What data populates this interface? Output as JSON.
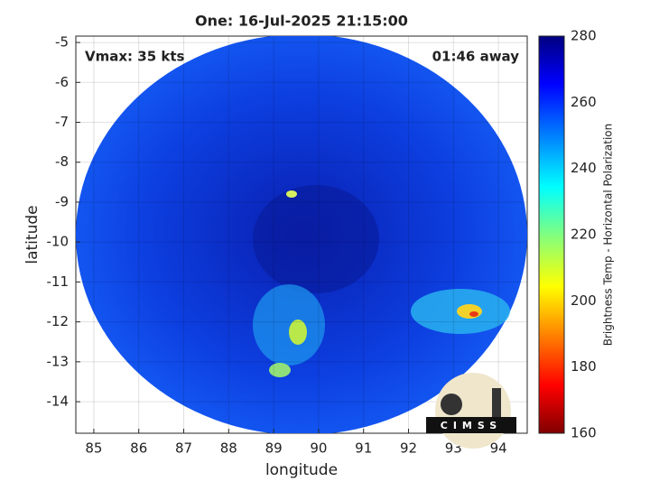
{
  "chart_data": {
    "type": "image",
    "title": "One: 16-Jul-2025 21:15:00",
    "annotations": [
      "Vmax: 35 kts",
      "01:46 away"
    ],
    "x_label": "longitude",
    "y_label": "latitude",
    "xlim": [
      84.6,
      94.64
    ],
    "xticks": [
      85,
      86,
      87,
      88,
      89,
      90,
      91,
      92,
      93,
      94
    ],
    "ylim": [
      -14.79,
      -4.84
    ],
    "yticks": [
      -14,
      -13,
      -12,
      -11,
      -10,
      -9,
      -8,
      -7,
      -6,
      -5
    ],
    "grid": true,
    "colorbar": {
      "label": "Brightness Temp - Horizontal Polarization",
      "colormap": "jet",
      "clim": [
        160,
        280
      ],
      "cticks": [
        160,
        180,
        200,
        220,
        240,
        260,
        280
      ]
    },
    "logo": "CIMSS"
  }
}
